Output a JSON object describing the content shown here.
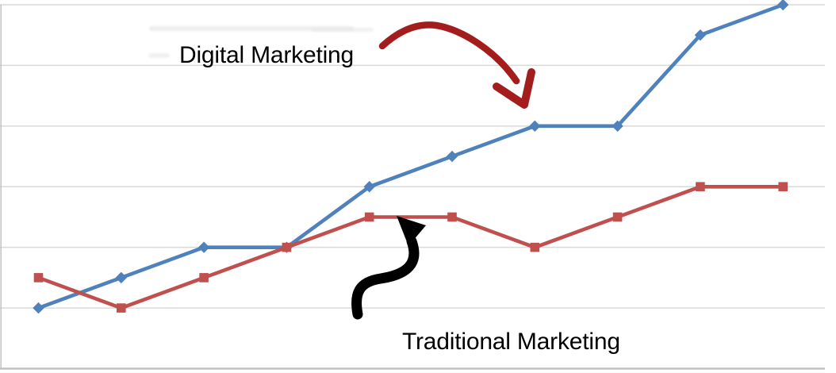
{
  "chart_data": {
    "type": "line",
    "title": "",
    "xlabel": "",
    "ylabel": "",
    "x": [
      1,
      2,
      3,
      4,
      5,
      6,
      7,
      8,
      9,
      10
    ],
    "ylim": [
      0,
      60
    ],
    "ytick_step": 10,
    "grid": true,
    "axis_tick_labels_visible": false,
    "legend_position": "none (labels drawn as annotations with arrows)",
    "series": [
      {
        "name": "Digital Marketing",
        "color": "#4f81bd",
        "marker": "diamond",
        "values": [
          10,
          15,
          20,
          20,
          30,
          35,
          40,
          40,
          55,
          60
        ]
      },
      {
        "name": "Traditional Marketing",
        "color": "#c0504d",
        "marker": "square",
        "values": [
          15,
          10,
          15,
          20,
          25,
          25,
          20,
          25,
          30,
          30
        ]
      }
    ]
  },
  "annotations": {
    "digital": {
      "label": "Digital Marketing",
      "arrow_color": "#a31d1d"
    },
    "traditional": {
      "label": "Traditional Marketing",
      "arrow_color": "#000000"
    }
  },
  "style": {
    "background": "#ffffff",
    "gridline_color": "#d9d9d9",
    "axis_color": "#c2c2c2",
    "label_color": "#000000",
    "smudge_color": "#e7e7e7"
  }
}
